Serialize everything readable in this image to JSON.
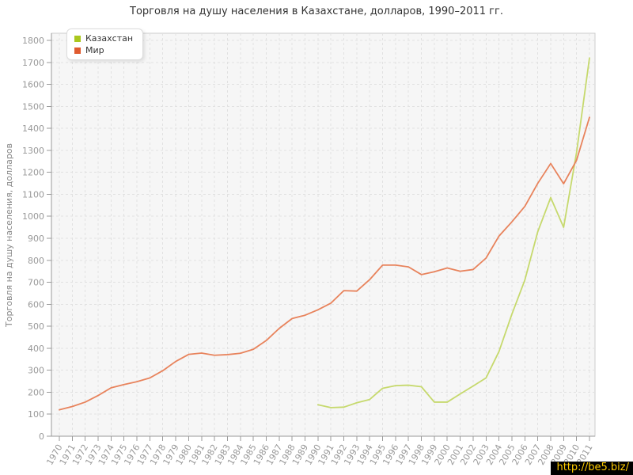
{
  "watermark": {
    "text": "http://be5.biz/",
    "color": "#ffcc00",
    "background": "#000000"
  },
  "chart_data": {
    "type": "line",
    "title": "Торговля на душу населения в Казахстане, долларов, 1990–2011 гг.",
    "ylabel": "Торговля на душу населения, долларов",
    "xlabel": "",
    "x": [
      1970,
      1971,
      1972,
      1973,
      1974,
      1975,
      1976,
      1977,
      1978,
      1979,
      1980,
      1981,
      1982,
      1983,
      1984,
      1985,
      1986,
      1987,
      1988,
      1989,
      1990,
      1991,
      1992,
      1993,
      1994,
      1995,
      1996,
      1997,
      1998,
      1999,
      2000,
      2001,
      2002,
      2003,
      2004,
      2005,
      2006,
      2007,
      2008,
      2009,
      2010,
      2011
    ],
    "ylim": [
      0,
      1800
    ],
    "ytick_step": 100,
    "grid": true,
    "legend_position": "top-left",
    "plot_bg": "#f6f6f6",
    "grid_color": "#e1e1e1",
    "axis_color": "#9a9a9a",
    "border_color": "#cccccc",
    "tick_label_color": "#999999",
    "ylabel_color": "#888888",
    "series": [
      {
        "id": "kazakhstan",
        "name": "Казахстан",
        "color": "#aac71e",
        "line_color": "#c6d96d",
        "values": [
          null,
          null,
          null,
          null,
          null,
          null,
          null,
          null,
          null,
          null,
          null,
          null,
          null,
          null,
          null,
          null,
          null,
          null,
          null,
          null,
          143,
          130,
          132,
          152,
          167,
          218,
          230,
          232,
          225,
          155,
          155,
          192,
          228,
          265,
          385,
          555,
          710,
          930,
          1085,
          950,
          1290,
          1720
        ]
      },
      {
        "id": "mir",
        "name": "Мир",
        "color": "#e05b30",
        "line_color": "#e8835c",
        "values": [
          120,
          135,
          155,
          185,
          220,
          235,
          248,
          265,
          298,
          340,
          372,
          378,
          368,
          371,
          377,
          395,
          435,
          490,
          535,
          550,
          575,
          605,
          662,
          660,
          712,
          778,
          778,
          770,
          735,
          748,
          765,
          750,
          758,
          810,
          910,
          975,
          1045,
          1150,
          1240,
          1148,
          1255,
          1450
        ]
      }
    ]
  }
}
